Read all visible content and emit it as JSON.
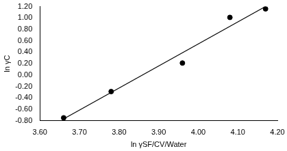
{
  "chart_data": {
    "type": "scatter",
    "x_label": "ln γSF/CV/Water",
    "y_label": "ln γC",
    "series": [
      {
        "type": "scatter",
        "color": "#000000",
        "marker": "circle",
        "x": [
          3.66,
          3.78,
          3.96,
          4.08,
          4.17
        ],
        "values": [
          -0.75,
          -0.29,
          0.21,
          1.01,
          1.16
        ]
      },
      {
        "type": "line",
        "color": "#000000",
        "line_style": "solid",
        "x": [
          3.66,
          4.17
        ],
        "values": [
          -0.77,
          1.2
        ]
      }
    ],
    "xlim": [
      3.6,
      4.2
    ],
    "xticks": [
      {
        "value": 3.6,
        "label": "3.60"
      },
      {
        "value": 3.7,
        "label": "3.70"
      },
      {
        "value": 3.8,
        "label": "3.80"
      },
      {
        "value": 3.9,
        "label": "3.90"
      },
      {
        "value": 4.0,
        "label": "4.00"
      },
      {
        "value": 4.1,
        "label": "4.10"
      },
      {
        "value": 4.2,
        "label": "4.20"
      }
    ],
    "ylim": [
      -0.8,
      1.2
    ],
    "yticks": [
      {
        "value": -0.8,
        "label": "-0.80"
      },
      {
        "value": -0.6,
        "label": "-0.60"
      },
      {
        "value": -0.4,
        "label": "-0.40"
      },
      {
        "value": -0.2,
        "label": "-0.20"
      },
      {
        "value": 0,
        "label": "0.00"
      },
      {
        "value": 0.2,
        "label": "0.20"
      },
      {
        "value": 0.4,
        "label": "0.40"
      },
      {
        "value": 0.6,
        "label": "0.60"
      },
      {
        "value": 0.8,
        "label": "0.80"
      },
      {
        "value": 1.0,
        "label": "1.00"
      },
      {
        "value": 1.2,
        "label": "1.20"
      }
    ],
    "grid": false
  }
}
